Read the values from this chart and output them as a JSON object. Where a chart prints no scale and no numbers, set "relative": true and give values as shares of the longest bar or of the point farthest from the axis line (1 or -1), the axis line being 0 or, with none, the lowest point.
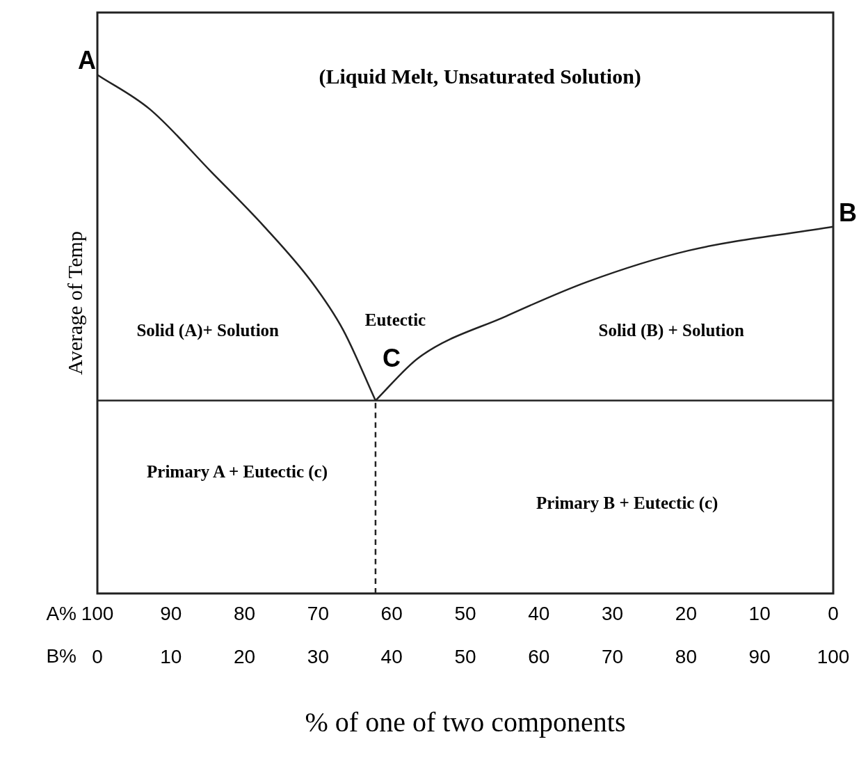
{
  "chart_data": {
    "type": "line",
    "relative": true,
    "ylabel": "Average of Temp",
    "xlabel": "% of one of two components",
    "xlim": [
      0,
      100
    ],
    "xticks": [
      0,
      10,
      20,
      30,
      40,
      50,
      60,
      70,
      80,
      90,
      100
    ],
    "x2lim": [
      100,
      0
    ],
    "x2ticks": [
      100,
      90,
      80,
      70,
      60,
      50,
      40,
      30,
      20,
      10,
      0
    ],
    "grid": false,
    "legend": false,
    "marker": "none",
    "series": [
      {
        "color": "#222222",
        "x": [
          0,
          7.1,
          15.4,
          22.7,
          29.1,
          33.4,
          37.8
        ],
        "values": [
          1.0,
          0.934,
          0.814,
          0.707,
          0.601,
          0.508,
          0.372
        ]
      },
      {
        "color": "#222222",
        "x": [
          37.8,
          43.7,
          55.6,
          66.6,
          80.3,
          100
        ],
        "values": [
          0.372,
          0.455,
          0.535,
          0.601,
          0.661,
          0.707
        ]
      },
      {
        "color": "#222222",
        "line_style": "dashed",
        "x": [
          37.8,
          37.8
        ],
        "values": [
          0,
          0.372
        ]
      }
    ],
    "ref_lines": [
      {
        "axis": "y",
        "value": 0.372,
        "color": "#222222"
      }
    ],
    "annotations": [
      "A%",
      "B%",
      {
        "text": "A",
        "x": 0,
        "y": 1.0
      },
      {
        "text": "B",
        "x": 100,
        "y": 0.707
      },
      {
        "text": "C",
        "x": 37.8,
        "y": 0.372
      },
      "(Liquid Melt, Unsaturated Solution)",
      "Solid (A)+ Solution",
      "Eutectic",
      "Solid (B) + Solution",
      "Primary A + Eutectic (c)",
      "Primary B + Eutectic (c)"
    ]
  }
}
